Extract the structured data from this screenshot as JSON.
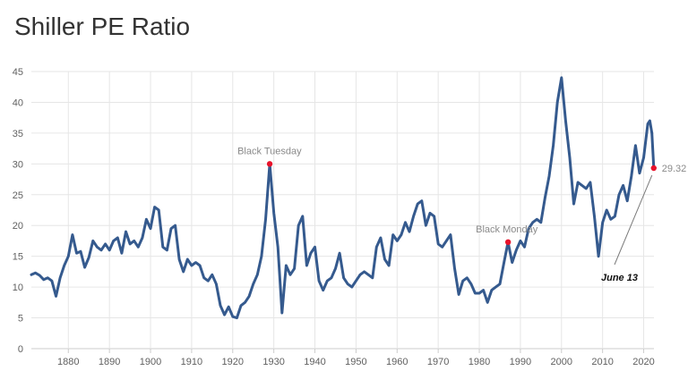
{
  "chart_data": {
    "type": "line",
    "title": "Shiller PE Ratio",
    "xlabel": "",
    "ylabel": "",
    "xlim": [
      1871,
      2022.5
    ],
    "ylim": [
      0,
      45
    ],
    "x_ticks": [
      1880,
      1890,
      1900,
      1910,
      1920,
      1930,
      1940,
      1950,
      1960,
      1970,
      1980,
      1990,
      2000,
      2010,
      2020
    ],
    "y_ticks": [
      0,
      5,
      10,
      15,
      20,
      25,
      30,
      35,
      40,
      45
    ],
    "grid": true,
    "series": [
      {
        "name": "Shiller PE Ratio",
        "color": "#355a8e",
        "points": [
          [
            1871,
            12.0
          ],
          [
            1872,
            12.3
          ],
          [
            1873,
            11.9
          ],
          [
            1874,
            11.2
          ],
          [
            1875,
            11.5
          ],
          [
            1876,
            11.0
          ],
          [
            1877,
            8.5
          ],
          [
            1878,
            11.5
          ],
          [
            1879,
            13.5
          ],
          [
            1880,
            15.0
          ],
          [
            1881,
            18.5
          ],
          [
            1882,
            15.5
          ],
          [
            1883,
            15.8
          ],
          [
            1884,
            13.2
          ],
          [
            1885,
            14.8
          ],
          [
            1886,
            17.5
          ],
          [
            1887,
            16.5
          ],
          [
            1888,
            16.0
          ],
          [
            1889,
            17.0
          ],
          [
            1890,
            16.0
          ],
          [
            1891,
            17.5
          ],
          [
            1892,
            18.0
          ],
          [
            1893,
            15.5
          ],
          [
            1894,
            19.0
          ],
          [
            1895,
            17.0
          ],
          [
            1896,
            17.5
          ],
          [
            1897,
            16.5
          ],
          [
            1898,
            18.0
          ],
          [
            1899,
            21.0
          ],
          [
            1900,
            19.5
          ],
          [
            1901,
            23.0
          ],
          [
            1902,
            22.5
          ],
          [
            1903,
            16.5
          ],
          [
            1904,
            16.0
          ],
          [
            1905,
            19.5
          ],
          [
            1906,
            20.0
          ],
          [
            1907,
            14.5
          ],
          [
            1908,
            12.5
          ],
          [
            1909,
            14.5
          ],
          [
            1910,
            13.5
          ],
          [
            1911,
            14.0
          ],
          [
            1912,
            13.5
          ],
          [
            1913,
            11.5
          ],
          [
            1914,
            11.0
          ],
          [
            1915,
            12.0
          ],
          [
            1916,
            10.5
          ],
          [
            1917,
            7.0
          ],
          [
            1918,
            5.5
          ],
          [
            1919,
            6.8
          ],
          [
            1920,
            5.2
          ],
          [
            1921,
            5.0
          ],
          [
            1922,
            7.0
          ],
          [
            1923,
            7.5
          ],
          [
            1924,
            8.5
          ],
          [
            1925,
            10.5
          ],
          [
            1926,
            12.0
          ],
          [
            1927,
            15.0
          ],
          [
            1928,
            21.0
          ],
          [
            1929,
            30.0
          ],
          [
            1930,
            22.0
          ],
          [
            1931,
            16.5
          ],
          [
            1932,
            5.8
          ],
          [
            1933,
            13.5
          ],
          [
            1934,
            12.0
          ],
          [
            1935,
            13.0
          ],
          [
            1936,
            20.0
          ],
          [
            1937,
            21.5
          ],
          [
            1938,
            13.5
          ],
          [
            1939,
            15.5
          ],
          [
            1940,
            16.5
          ],
          [
            1941,
            11.0
          ],
          [
            1942,
            9.5
          ],
          [
            1943,
            11.0
          ],
          [
            1944,
            11.5
          ],
          [
            1945,
            13.0
          ],
          [
            1946,
            15.5
          ],
          [
            1947,
            11.5
          ],
          [
            1948,
            10.5
          ],
          [
            1949,
            10.0
          ],
          [
            1950,
            11.0
          ],
          [
            1951,
            12.0
          ],
          [
            1952,
            12.5
          ],
          [
            1953,
            12.0
          ],
          [
            1954,
            11.5
          ],
          [
            1955,
            16.5
          ],
          [
            1956,
            18.0
          ],
          [
            1957,
            14.5
          ],
          [
            1958,
            13.5
          ],
          [
            1959,
            18.5
          ],
          [
            1960,
            17.5
          ],
          [
            1961,
            18.5
          ],
          [
            1962,
            20.5
          ],
          [
            1963,
            19.0
          ],
          [
            1964,
            21.5
          ],
          [
            1965,
            23.5
          ],
          [
            1966,
            24.0
          ],
          [
            1967,
            20.0
          ],
          [
            1968,
            22.0
          ],
          [
            1969,
            21.5
          ],
          [
            1970,
            17.0
          ],
          [
            1971,
            16.5
          ],
          [
            1972,
            17.5
          ],
          [
            1973,
            18.5
          ],
          [
            1974,
            13.0
          ],
          [
            1975,
            8.8
          ],
          [
            1976,
            11.0
          ],
          [
            1977,
            11.5
          ],
          [
            1978,
            10.5
          ],
          [
            1979,
            9.0
          ],
          [
            1980,
            9.0
          ],
          [
            1981,
            9.5
          ],
          [
            1982,
            7.5
          ],
          [
            1983,
            9.5
          ],
          [
            1984,
            10.0
          ],
          [
            1985,
            10.5
          ],
          [
            1986,
            14.0
          ],
          [
            1987,
            17.3
          ],
          [
            1988,
            14.0
          ],
          [
            1989,
            16.0
          ],
          [
            1990,
            17.5
          ],
          [
            1991,
            16.5
          ],
          [
            1992,
            19.5
          ],
          [
            1993,
            20.5
          ],
          [
            1994,
            21.0
          ],
          [
            1995,
            20.5
          ],
          [
            1996,
            24.5
          ],
          [
            1997,
            28.0
          ],
          [
            1998,
            33.0
          ],
          [
            1999,
            40.0
          ],
          [
            2000,
            44.0
          ],
          [
            2001,
            37.0
          ],
          [
            2002,
            31.0
          ],
          [
            2003,
            23.5
          ],
          [
            2004,
            27.0
          ],
          [
            2005,
            26.5
          ],
          [
            2006,
            26.0
          ],
          [
            2007,
            27.0
          ],
          [
            2008,
            21.5
          ],
          [
            2009,
            15.0
          ],
          [
            2010,
            20.5
          ],
          [
            2011,
            22.5
          ],
          [
            2012,
            21.0
          ],
          [
            2013,
            21.5
          ],
          [
            2014,
            25.0
          ],
          [
            2015,
            26.5
          ],
          [
            2016,
            24.0
          ],
          [
            2017,
            28.0
          ],
          [
            2018,
            33.0
          ],
          [
            2019,
            28.5
          ],
          [
            2020,
            31.0
          ],
          [
            2021,
            36.5
          ],
          [
            2021.5,
            37.0
          ],
          [
            2022,
            35.0
          ],
          [
            2022.45,
            29.32
          ]
        ]
      }
    ],
    "highlights": [
      {
        "label": "Black Tuesday",
        "x": 1929,
        "y": 30.0,
        "color": "#e8132b"
      },
      {
        "label": "Black Monday",
        "x": 1987,
        "y": 17.3,
        "color": "#e8132b"
      }
    ],
    "last_value": {
      "label": "29.32",
      "x": 2022.45,
      "y": 29.32,
      "color": "#e8132b"
    },
    "callout": {
      "label": "June 13"
    }
  }
}
